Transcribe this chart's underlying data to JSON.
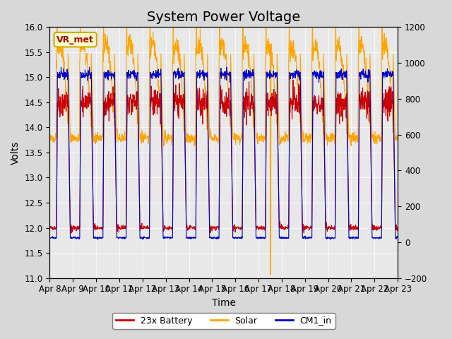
{
  "title": "System Power Voltage",
  "xlabel": "Time",
  "ylabel": "Volts",
  "ylim_left": [
    11.0,
    16.0
  ],
  "ylim_right": [
    -200,
    1200
  ],
  "yticks_left": [
    11.0,
    11.5,
    12.0,
    12.5,
    13.0,
    13.5,
    14.0,
    14.5,
    15.0,
    15.5,
    16.0
  ],
  "yticks_right": [
    -200,
    0,
    200,
    400,
    600,
    800,
    1000,
    1200
  ],
  "date_labels": [
    "Apr 8",
    "Apr 9",
    "Apr 10",
    "Apr 11",
    "Apr 12",
    "Apr 13",
    "Apr 14",
    "Apr 15",
    "Apr 16",
    "Apr 17",
    "Apr 18",
    "Apr 19",
    "Apr 20",
    "Apr 21",
    "Apr 22",
    "Apr 23"
  ],
  "legend_labels": [
    "23x Battery",
    "Solar",
    "CM1_in"
  ],
  "legend_colors": [
    "#cc0000",
    "#ffa500",
    "#0000cc"
  ],
  "line_colors": [
    "#cc0000",
    "#ffa500",
    "#0000cc"
  ],
  "vr_met_label": "VR_met",
  "vr_met_bg": "#ffffcc",
  "vr_met_border": "#ccaa00",
  "vr_met_text_color": "#aa0000",
  "background_color": "#d8d8d8",
  "plot_bg": "#e8e8e8",
  "title_fontsize": 14,
  "axis_fontsize": 10,
  "tick_fontsize": 8.5,
  "n_days": 15,
  "pts_per_day": 96,
  "battery_base": 12.0,
  "battery_peak": 15.0,
  "cm1_base": 11.8,
  "cm1_peak": 15.1,
  "solar_watts_day": 1050,
  "solar_watts_night": 580
}
